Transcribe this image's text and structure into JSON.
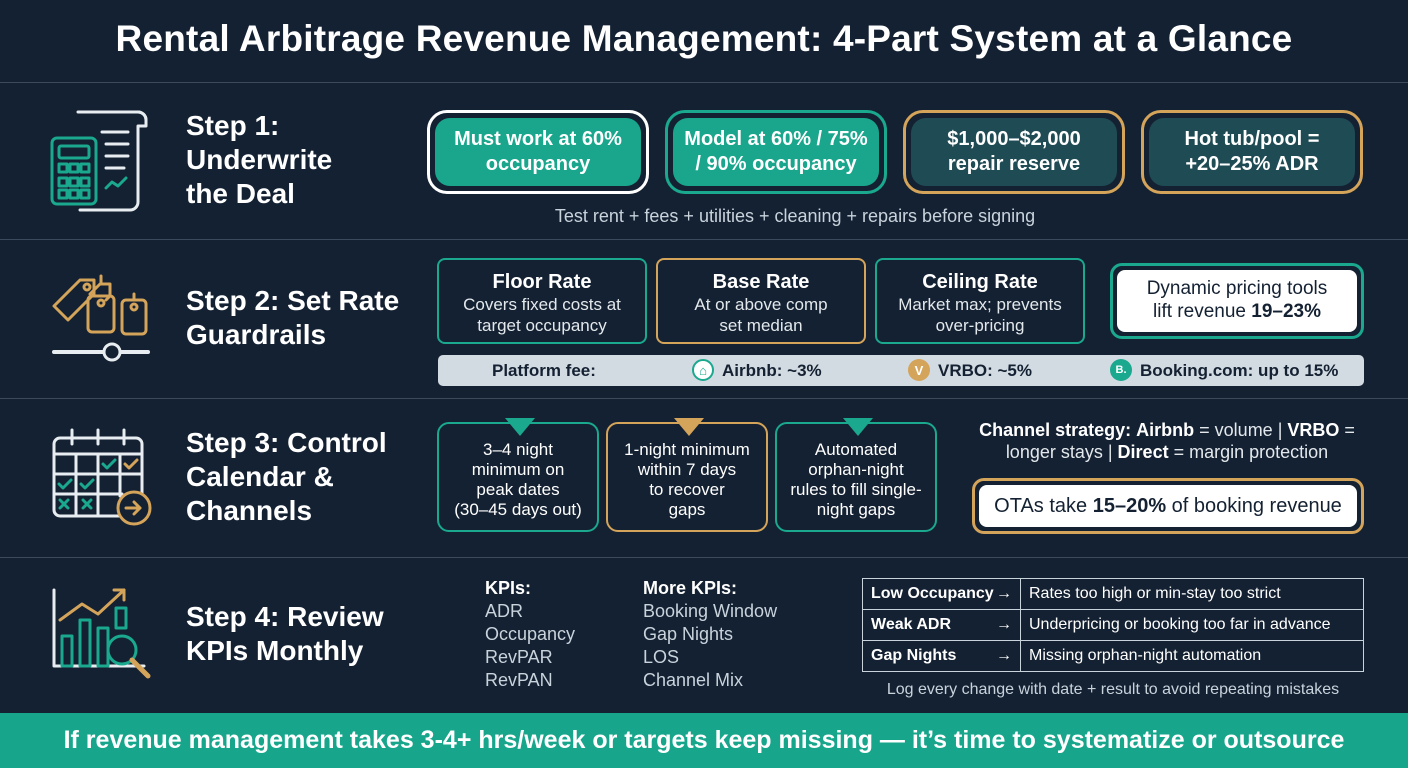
{
  "title": "Rental Arbitrage Revenue Management: 4-Part System at a Glance",
  "colors": {
    "background": "#142132",
    "teal": "#19a68c",
    "gold": "#d4a45a",
    "white": "#ffffff"
  },
  "step1": {
    "title_line1": "Step 1:",
    "title_line2": "Underwrite",
    "title_line3": "the Deal",
    "icon": "calculator-document-icon",
    "pills": [
      {
        "line1": "Must work at 60%",
        "line2": "occupancy"
      },
      {
        "line1": "Model at 60% / 75%",
        "line2": "/ 90% occupancy"
      },
      {
        "line1": "$1,000–$2,000",
        "line2": "repair reserve"
      },
      {
        "line1": "Hot tub/pool =",
        "line2": "+20–25% ADR"
      }
    ],
    "caption": "Test rent + fees + utilities + cleaning + repairs before signing"
  },
  "step2": {
    "title_line1": "Step 2: Set Rate",
    "title_line2": "Guardrails",
    "icon": "price-tags-slider-icon",
    "boxes": [
      {
        "title": "Floor Rate",
        "desc1": "Covers fixed costs at",
        "desc2": "target occupancy"
      },
      {
        "title": "Base Rate",
        "desc1": "At or above comp",
        "desc2": "set median"
      },
      {
        "title": "Ceiling Rate",
        "desc1": "Market max; prevents",
        "desc2": "over-pricing"
      }
    ],
    "dynamic_line1": "Dynamic pricing tools",
    "dynamic_line2_prefix": "lift revenue ",
    "dynamic_line2_value": "19–23%",
    "fee_label": "Platform fee:",
    "fees": [
      {
        "icon": "airbnb-logo-icon",
        "badge": "⌂",
        "label": "Airbnb: ~3%"
      },
      {
        "icon": "vrbo-logo-icon",
        "badge": "V",
        "label": "VRBO: ~5%"
      },
      {
        "icon": "booking-logo-icon",
        "badge": "B.",
        "label": "Booking.com: up to 15%"
      }
    ]
  },
  "step3": {
    "title_line1": "Step 3: Control",
    "title_line2": "Calendar &",
    "title_line3": "Channels",
    "icon": "calendar-arrow-icon",
    "boxes": [
      {
        "lines": [
          "3–4 night",
          "minimum on",
          "peak dates",
          "(30–45 days out)"
        ]
      },
      {
        "lines": [
          "1-night minimum",
          "within 7 days",
          "to recover",
          "gaps"
        ]
      },
      {
        "lines": [
          "Automated",
          "orphan-night",
          "rules to fill single-",
          "night gaps"
        ]
      }
    ],
    "channel": {
      "label": "Channel strategy:",
      "airbnb": "Airbnb",
      "airbnb_role": " = volume | ",
      "vrbo": "VRBO",
      "vrbo_role": " = longer stays | ",
      "direct": "Direct",
      "direct_role": " = margin protection"
    },
    "ota_prefix": "OTAs take ",
    "ota_value": "15–20%",
    "ota_suffix": " of booking revenue"
  },
  "step4": {
    "title_line1": "Step 4: Review",
    "title_line2": "KPIs Monthly",
    "icon": "bar-chart-magnifier-icon",
    "kpis_head": "KPIs:",
    "kpis": [
      "ADR",
      "Occupancy",
      "RevPAR",
      "RevPAN"
    ],
    "more_head": "More KPIs:",
    "more_kpis": [
      "Booking Window",
      "Gap Nights",
      "LOS",
      "Channel Mix"
    ],
    "table": [
      {
        "key": "Low Occupancy",
        "value": "Rates too high or min-stay too strict"
      },
      {
        "key": "Weak ADR",
        "value": "Underpricing or booking too far in advance"
      },
      {
        "key": "Gap Nights",
        "value": "Missing orphan-night automation"
      }
    ],
    "note": "Log every change with date + result to avoid repeating mistakes"
  },
  "footer": "If revenue management takes 3-4+ hrs/week or targets keep missing — it’s time to systematize or outsource"
}
